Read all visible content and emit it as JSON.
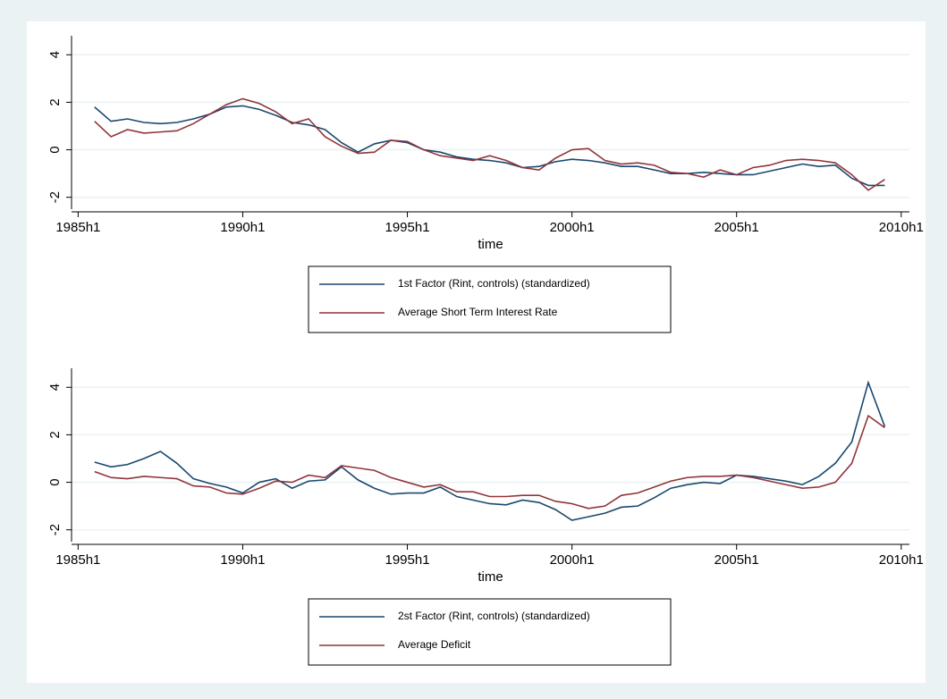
{
  "chart_data": [
    {
      "type": "line",
      "xlabel": "time",
      "xlim": [
        49.6,
        100.5
      ],
      "xticks": [
        {
          "value": 50,
          "label": "1985h1"
        },
        {
          "value": 60,
          "label": "1990h1"
        },
        {
          "value": 70,
          "label": "1995h1"
        },
        {
          "value": 80,
          "label": "2000h1"
        },
        {
          "value": 90,
          "label": "2005h1"
        },
        {
          "value": 100,
          "label": "2010h1"
        }
      ],
      "ylim": [
        -2.5,
        4.8
      ],
      "yticks": [
        -2,
        0,
        2,
        4
      ],
      "grid": true,
      "legend": "bottom",
      "x": [
        51,
        52,
        53,
        54,
        55,
        56,
        57,
        58,
        59,
        60,
        61,
        62,
        63,
        64,
        65,
        66,
        67,
        68,
        69,
        70,
        71,
        72,
        73,
        74,
        75,
        76,
        77,
        78,
        79,
        80,
        81,
        82,
        83,
        84,
        85,
        86,
        87,
        88,
        89,
        90,
        91,
        92,
        93,
        94,
        95,
        96,
        97,
        98,
        99
      ],
      "series": [
        {
          "name": "1st Factor (Rint, controls) (standardized)",
          "color": "#1a476f",
          "values": [
            1.8,
            1.2,
            1.3,
            1.15,
            1.1,
            1.15,
            1.3,
            1.5,
            1.8,
            1.85,
            1.7,
            1.45,
            1.15,
            1.05,
            0.85,
            0.3,
            -0.1,
            0.25,
            0.4,
            0.3,
            0,
            -0.1,
            -0.3,
            -0.4,
            -0.45,
            -0.55,
            -0.75,
            -0.7,
            -0.5,
            -0.4,
            -0.45,
            -0.55,
            -0.7,
            -0.7,
            -0.85,
            -1.0,
            -1.0,
            -0.95,
            -1.0,
            -1.05,
            -1.05,
            -0.9,
            -0.75,
            -0.6,
            -0.7,
            -0.65,
            -1.2,
            -1.5,
            -1.5
          ]
        },
        {
          "name": "Average Short Term Interest Rate",
          "color": "#90353b",
          "values": [
            1.2,
            0.55,
            0.85,
            0.7,
            0.75,
            0.8,
            1.1,
            1.5,
            1.9,
            2.15,
            1.95,
            1.6,
            1.1,
            1.3,
            0.55,
            0.15,
            -0.15,
            -0.1,
            0.4,
            0.35,
            0,
            -0.25,
            -0.35,
            -0.45,
            -0.25,
            -0.45,
            -0.75,
            -0.85,
            -0.35,
            0,
            0.05,
            -0.45,
            -0.6,
            -0.55,
            -0.65,
            -0.95,
            -1.0,
            -1.15,
            -0.85,
            -1.05,
            -0.75,
            -0.65,
            -0.45,
            -0.4,
            -0.45,
            -0.55,
            -1.05,
            -1.7,
            -1.25
          ]
        }
      ]
    },
    {
      "type": "line",
      "xlabel": "time",
      "xlim": [
        49.6,
        100.5
      ],
      "xticks": [
        {
          "value": 50,
          "label": "1985h1"
        },
        {
          "value": 60,
          "label": "1990h1"
        },
        {
          "value": 70,
          "label": "1995h1"
        },
        {
          "value": 80,
          "label": "2000h1"
        },
        {
          "value": 90,
          "label": "2005h1"
        },
        {
          "value": 100,
          "label": "2010h1"
        }
      ],
      "ylim": [
        -2.5,
        4.8
      ],
      "yticks": [
        -2,
        0,
        2,
        4
      ],
      "grid": true,
      "legend": "bottom",
      "x": [
        51,
        52,
        53,
        54,
        55,
        56,
        57,
        58,
        59,
        60,
        61,
        62,
        63,
        64,
        65,
        66,
        67,
        68,
        69,
        70,
        71,
        72,
        73,
        74,
        75,
        76,
        77,
        78,
        79,
        80,
        81,
        82,
        83,
        84,
        85,
        86,
        87,
        88,
        89,
        90,
        91,
        92,
        93,
        94,
        95,
        96,
        97,
        98,
        99
      ],
      "series": [
        {
          "name": "2st Factor (Rint, controls) (standardized)",
          "color": "#1a476f",
          "values": [
            0.85,
            0.65,
            0.75,
            1.0,
            1.3,
            0.8,
            0.15,
            -0.05,
            -0.2,
            -0.45,
            0,
            0.15,
            -0.25,
            0.05,
            0.1,
            0.65,
            0.1,
            -0.25,
            -0.5,
            -0.45,
            -0.45,
            -0.2,
            -0.6,
            -0.75,
            -0.9,
            -0.95,
            -0.75,
            -0.85,
            -1.15,
            -1.6,
            -1.45,
            -1.3,
            -1.05,
            -1.0,
            -0.65,
            -0.25,
            -0.1,
            0,
            -0.05,
            0.3,
            0.25,
            0.15,
            0.05,
            -0.1,
            0.25,
            0.8,
            1.7,
            4.2,
            2.35
          ]
        },
        {
          "name": "Average Deficit",
          "color": "#90353b",
          "values": [
            0.45,
            0.2,
            0.15,
            0.25,
            0.2,
            0.15,
            -0.15,
            -0.2,
            -0.45,
            -0.5,
            -0.25,
            0.05,
            0,
            0.3,
            0.2,
            0.7,
            0.6,
            0.5,
            0.2,
            0,
            -0.2,
            -0.1,
            -0.4,
            -0.4,
            -0.6,
            -0.6,
            -0.55,
            -0.55,
            -0.8,
            -0.9,
            -1.1,
            -1.0,
            -0.55,
            -0.45,
            -0.2,
            0.05,
            0.2,
            0.25,
            0.25,
            0.3,
            0.2,
            0.05,
            -0.1,
            -0.25,
            -0.2,
            0,
            0.8,
            2.8,
            2.3
          ]
        }
      ]
    }
  ]
}
